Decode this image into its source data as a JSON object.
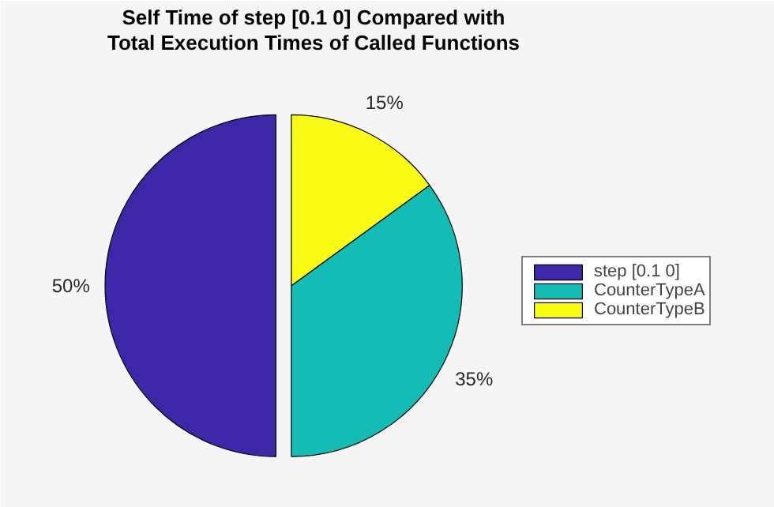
{
  "chart_data": {
    "type": "pie",
    "title": "Self Time of step [0.1 0] Compared with\nTotal Execution Times of Called Functions",
    "categories": [
      "step [0.1 0]",
      "CounterTypeA",
      "CounterTypeB"
    ],
    "values": [
      50,
      35,
      15
    ],
    "colors": [
      "#3e26a8",
      "#13bdb5",
      "#f9fb15"
    ],
    "value_labels": [
      "50%",
      "35%",
      "15%"
    ],
    "legend": "right"
  }
}
